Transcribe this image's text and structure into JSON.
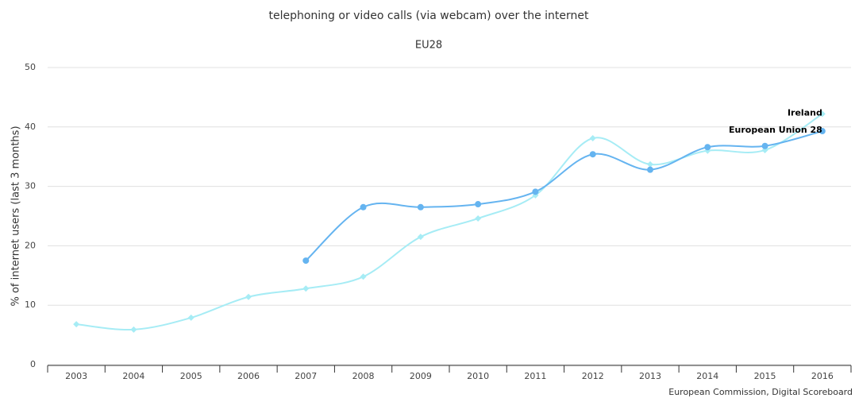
{
  "chart_data": {
    "type": "line",
    "title": "telephoning or video calls (via webcam) over the internet",
    "subtitle": "EU28",
    "y_label": "% of internet users (last 3 months)",
    "credits": "European Commission, Digital Scoreboard",
    "categories": [
      "2003",
      "2004",
      "2005",
      "2006",
      "2007",
      "2008",
      "2009",
      "2010",
      "2011",
      "2012",
      "2013",
      "2014",
      "2015",
      "2016"
    ],
    "series": [
      {
        "name": "Ireland",
        "color": "#a6ecf5",
        "marker": "diamond",
        "values": [
          6.8,
          5.9,
          7.9,
          11.4,
          12.8,
          14.8,
          21.5,
          24.6,
          28.5,
          38.1,
          33.7,
          36.0,
          36.1,
          42.2
        ]
      },
      {
        "name": "European Union 28",
        "color": "#65b4f0",
        "marker": "circle",
        "values": [
          null,
          null,
          null,
          null,
          17.5,
          26.5,
          26.5,
          27.0,
          29.1,
          35.4,
          32.8,
          36.6,
          36.8,
          39.3
        ]
      }
    ],
    "ylim": [
      0,
      50
    ],
    "yticks": [
      0,
      10,
      20,
      30,
      40,
      50
    ],
    "grid": true
  }
}
